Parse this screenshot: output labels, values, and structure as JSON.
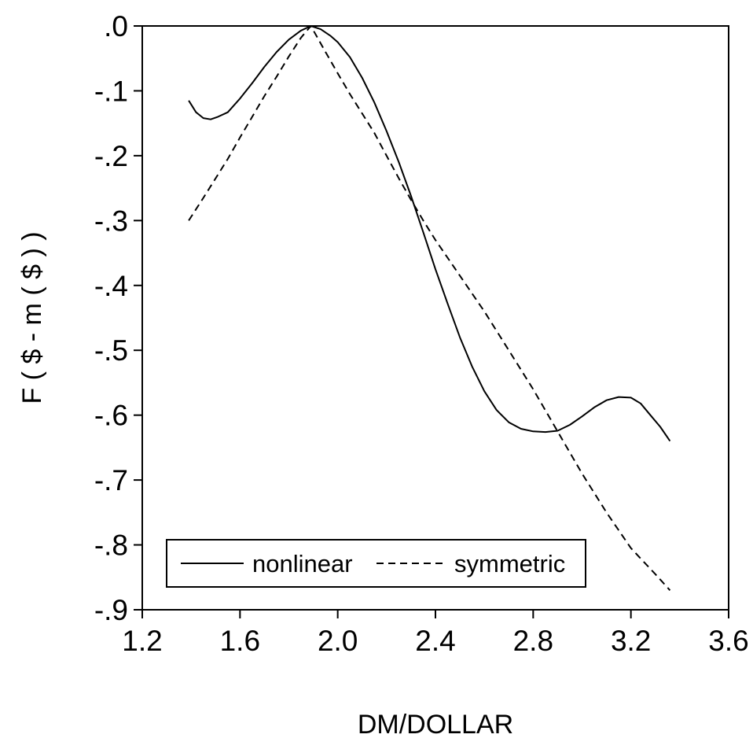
{
  "chart_data": {
    "type": "line",
    "title": "",
    "xlabel": "DM/DOLLAR",
    "ylabel": "F ( $ - m ( $ ) )",
    "xlim": [
      1.2,
      3.6
    ],
    "ylim": [
      -0.9,
      0.0
    ],
    "x_ticks": [
      1.2,
      1.6,
      2.0,
      2.4,
      2.8,
      3.2,
      3.6
    ],
    "x_tick_labels": [
      "1.2",
      "1.6",
      "2.0",
      "2.4",
      "2.8",
      "3.2",
      "3.6"
    ],
    "y_ticks": [
      0.0,
      -0.1,
      -0.2,
      -0.3,
      -0.4,
      -0.5,
      -0.6,
      -0.7,
      -0.8,
      -0.9
    ],
    "y_tick_labels": [
      ".0",
      "-.1",
      "-.2",
      "-.3",
      "-.4",
      "-.5",
      "-.6",
      "-.7",
      "-.8",
      "-.9"
    ],
    "grid": false,
    "legend_position": "bottom-left",
    "series": [
      {
        "name": "nonlinear",
        "style": "solid",
        "color": "#000000",
        "x": [
          1.39,
          1.42,
          1.45,
          1.48,
          1.51,
          1.55,
          1.6,
          1.65,
          1.7,
          1.75,
          1.8,
          1.85,
          1.89,
          1.93,
          1.97,
          2.0,
          2.05,
          2.1,
          2.15,
          2.2,
          2.25,
          2.3,
          2.35,
          2.4,
          2.45,
          2.5,
          2.55,
          2.6,
          2.65,
          2.7,
          2.75,
          2.8,
          2.85,
          2.9,
          2.95,
          3.0,
          3.05,
          3.1,
          3.15,
          3.2,
          3.24,
          3.28,
          3.32,
          3.36
        ],
        "y": [
          -0.115,
          -0.133,
          -0.142,
          -0.144,
          -0.14,
          -0.133,
          -0.112,
          -0.088,
          -0.063,
          -0.04,
          -0.021,
          -0.007,
          0.0,
          -0.005,
          -0.015,
          -0.025,
          -0.048,
          -0.08,
          -0.118,
          -0.162,
          -0.21,
          -0.262,
          -0.318,
          -0.375,
          -0.428,
          -0.48,
          -0.525,
          -0.563,
          -0.592,
          -0.611,
          -0.621,
          -0.625,
          -0.626,
          -0.624,
          -0.615,
          -0.602,
          -0.588,
          -0.577,
          -0.572,
          -0.573,
          -0.582,
          -0.6,
          -0.618,
          -0.64
        ]
      },
      {
        "name": "symmetric",
        "style": "dashed",
        "color": "#000000",
        "x": [
          1.39,
          1.45,
          1.5,
          1.55,
          1.6,
          1.65,
          1.7,
          1.75,
          1.8,
          1.85,
          1.89,
          1.95,
          2.0,
          2.05,
          2.1,
          2.15,
          2.2,
          2.25,
          2.3,
          2.35,
          2.4,
          2.5,
          2.6,
          2.7,
          2.8,
          2.9,
          3.0,
          3.1,
          3.2,
          3.3,
          3.36
        ],
        "y": [
          -0.3,
          -0.265,
          -0.235,
          -0.205,
          -0.172,
          -0.14,
          -0.108,
          -0.078,
          -0.047,
          -0.018,
          0.0,
          -0.04,
          -0.073,
          -0.105,
          -0.135,
          -0.165,
          -0.2,
          -0.235,
          -0.268,
          -0.3,
          -0.33,
          -0.385,
          -0.44,
          -0.5,
          -0.56,
          -0.625,
          -0.69,
          -0.75,
          -0.805,
          -0.845,
          -0.87
        ]
      }
    ]
  }
}
